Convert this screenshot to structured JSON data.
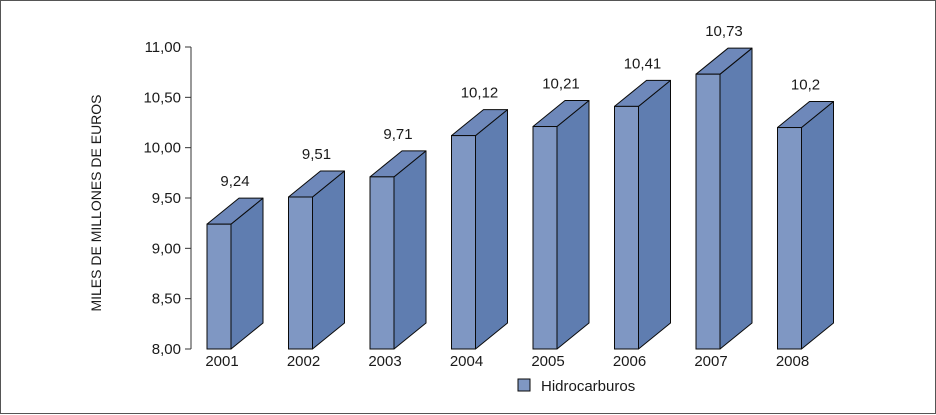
{
  "chart_data": {
    "type": "bar",
    "bar_style": "3d",
    "categories": [
      "2001",
      "2002",
      "2003",
      "2004",
      "2005",
      "2006",
      "2007",
      "2008"
    ],
    "series": [
      {
        "name": "Hidrocarburos",
        "values": [
          9.24,
          9.51,
          9.71,
          10.12,
          10.21,
          10.41,
          10.73,
          10.2
        ],
        "data_labels": [
          "9,24",
          "9,51",
          "9,71",
          "10,12",
          "10,21",
          "10,41",
          "10,73",
          "10,2"
        ]
      }
    ],
    "ylabel": "MILES DE MILLONES DE EUROS",
    "xlabel": "",
    "ylim": [
      8,
      11
    ],
    "y_ticks": [
      8,
      8.5,
      9,
      9.5,
      10,
      10.5,
      11
    ],
    "y_tick_labels": [
      "8,00",
      "8,50",
      "9,00",
      "9,50",
      "10,00",
      "10,50",
      "11,00"
    ],
    "grid": false,
    "legend_position": "bottom",
    "colors": {
      "front": "#7f97c3",
      "side": "#5f7db0",
      "top": "#6e88ba",
      "outline": "#0a0a0a",
      "axis": "#333333"
    }
  }
}
